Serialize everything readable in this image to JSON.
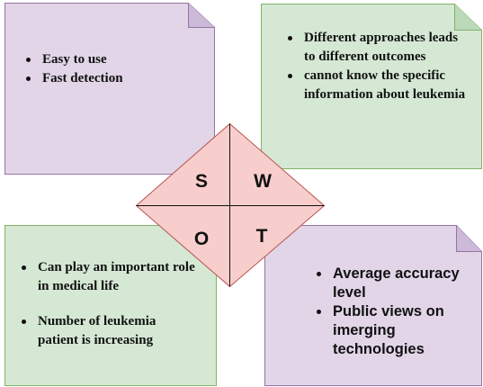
{
  "strengths": {
    "items": [
      "Easy to use",
      " Fast detection"
    ]
  },
  "weaknesses": {
    "items": [
      "Different approaches leads to different outcomes",
      "cannot know the specific information about leukemia"
    ]
  },
  "opportunities": {
    "items": [
      "Can play an important role in medical life",
      "Number of leukemia patient is increasing"
    ]
  },
  "threats": {
    "items": [
      "Average accuracy level",
      "Public views on imerging technologies"
    ]
  },
  "diamond": {
    "s": "S",
    "w": "W",
    "o": "O",
    "t": "T"
  },
  "colors": {
    "purple_note": "#e1d5e7",
    "purple_border": "#9673a6",
    "green_note": "#d5e8d4",
    "green_border": "#82b366",
    "diamond_fill": "#f8cecc",
    "diamond_border": "#b85450"
  }
}
